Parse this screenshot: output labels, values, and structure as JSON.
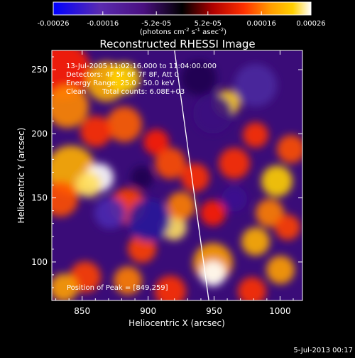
{
  "colorbar": {
    "ticks": [
      "-0.00026",
      "-0.00016",
      "-5.2e-05",
      "5.2e-05",
      "0.00016",
      "0.00026"
    ],
    "tick_values": [
      -0.00026,
      -0.00016,
      -5.2e-05,
      5.2e-05,
      0.00016,
      0.00026
    ],
    "range": [
      -0.00026,
      0.00026
    ],
    "unit_label": "(photons cm",
    "unit_exp1": "-2",
    "unit_mid": " s",
    "unit_exp2": "-1",
    "unit_mid2": " asec",
    "unit_exp3": "-2",
    "unit_end": ")",
    "colors": [
      "#0000ff",
      "#5a2bb0",
      "#4a1080",
      "#000000",
      "#b00000",
      "#ff3000",
      "#ff9a00",
      "#ffd000",
      "#ffffff"
    ]
  },
  "title": "Reconstructed RHESSI Image",
  "info": {
    "line1": "13-Jul-2005 11:02:16.000 to 11:04:00.000",
    "line2": "Detectors: 4F 5F 6F 7F 8F, Att 0",
    "line3": "Energy Range: 25.0 - 50.0 keV",
    "line4_a": "Clean",
    "line4_b": "Total counts: 6.08E+03"
  },
  "peak_text": "Position of Peak = [849,259]",
  "footer_date": "5-Jul-2013 00:17",
  "chart_data": {
    "type": "heatmap",
    "title": "Reconstructed RHESSI Image",
    "xlabel": "Heliocentric X (arcsec)",
    "ylabel": "Heliocentric Y (arcsec)",
    "xlim": [
      827,
      1017
    ],
    "ylim": [
      70,
      265
    ],
    "xticks": [
      850,
      900,
      950,
      1000
    ],
    "yticks": [
      100,
      150,
      200,
      250
    ],
    "limb_line": [
      [
        920,
        265
      ],
      [
        946,
        70
      ]
    ],
    "peak_position": [
      849,
      259
    ]
  }
}
